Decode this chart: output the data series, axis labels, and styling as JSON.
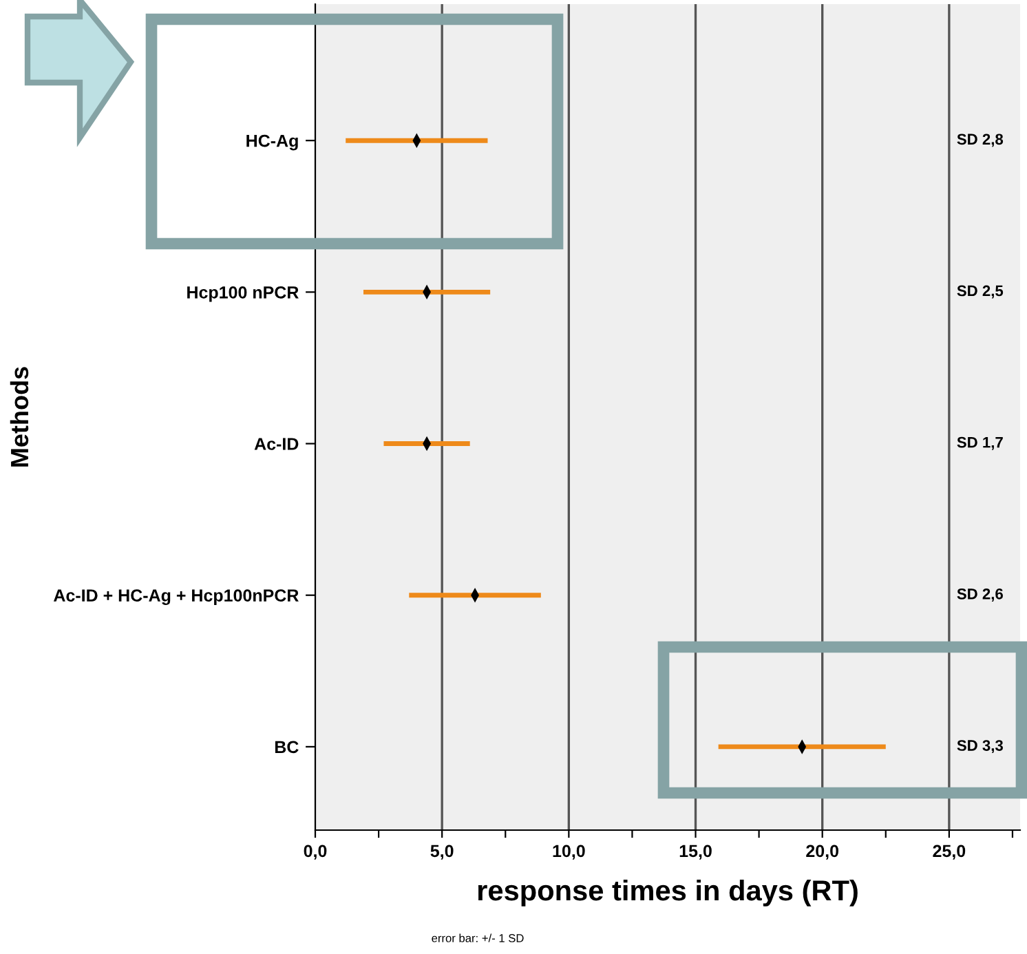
{
  "chart_data": {
    "type": "scatter",
    "orientation": "horizontal",
    "categories": [
      "HC-Ag",
      "Hcp100 nPCR",
      "Ac-ID",
      "Ac-ID + HC-Ag + Hcp100nPCR",
      "BC"
    ],
    "series": [
      {
        "color": "#ee8a1a",
        "colors": [
          "#000000",
          "#000000",
          "#000000",
          "#000000",
          "#000000"
        ],
        "values": [
          4.0,
          4.4,
          4.4,
          6.3,
          19.2
        ],
        "errors": [
          2.8,
          2.5,
          1.7,
          2.6,
          3.3
        ]
      }
    ],
    "xlabel": "response times in days (RT)",
    "ylabel": "Methods",
    "xlim": [
      0,
      27.8
    ],
    "xticks": [
      {
        "value": 0,
        "label": "0,0"
      },
      {
        "value": 2.5,
        "label": null
      },
      {
        "value": 5,
        "label": "5,0"
      },
      {
        "value": 7.5,
        "label": null
      },
      {
        "value": 10,
        "label": "10,0"
      },
      {
        "value": 12.5,
        "label": null
      },
      {
        "value": 15,
        "label": "15,0"
      },
      {
        "value": 17.5,
        "label": null
      },
      {
        "value": 20,
        "label": "20,0"
      },
      {
        "value": 22.5,
        "label": null
      },
      {
        "value": 25,
        "label": "25,0"
      },
      {
        "value": 27.5,
        "label": null
      }
    ],
    "grid": "x",
    "annotations": [
      "SD 2,8",
      "SD 2,5",
      "SD 1,7",
      "SD 2,6",
      "SD 3,3",
      "error bar: +/- 1 SD"
    ]
  }
}
